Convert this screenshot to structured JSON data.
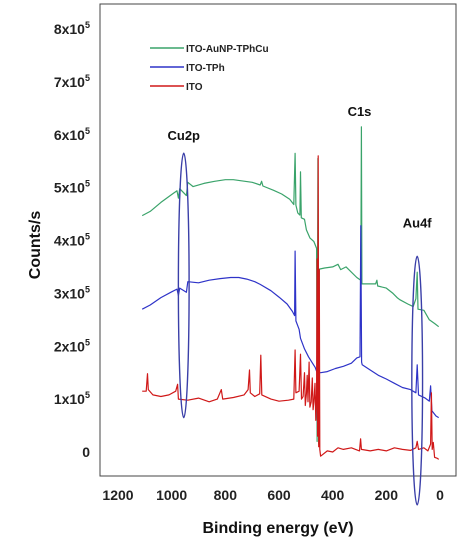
{
  "chart_data": {
    "type": "line",
    "title": "",
    "xlabel": "Binding energy (eV)",
    "ylabel": "Counts/s",
    "xlim": [
      1200,
      0
    ],
    "ylim": [
      -50000,
      850000
    ],
    "x_reversed": true,
    "grid": false,
    "legend_position": "top-left",
    "x_ticks": [
      1200,
      1000,
      800,
      600,
      400,
      200,
      0
    ],
    "y_ticks": [
      {
        "value": 0,
        "base": "0",
        "exp": ""
      },
      {
        "value": 100000,
        "base": "1x10",
        "exp": "5"
      },
      {
        "value": 200000,
        "base": "2x10",
        "exp": "5"
      },
      {
        "value": 300000,
        "base": "3x10",
        "exp": "5"
      },
      {
        "value": 400000,
        "base": "4x10",
        "exp": "5"
      },
      {
        "value": 500000,
        "base": "5x10",
        "exp": "5"
      },
      {
        "value": 600000,
        "base": "6x10",
        "exp": "5"
      },
      {
        "value": 700000,
        "base": "7x10",
        "exp": "5"
      },
      {
        "value": 800000,
        "base": "8x10",
        "exp": "5"
      }
    ],
    "series": [
      {
        "name": "ITO-AuNP-TPhCu",
        "color": "#3aa36a",
        "points": [
          [
            1110,
            447000
          ],
          [
            1080,
            455000
          ],
          [
            1040,
            472000
          ],
          [
            1000,
            487000
          ],
          [
            980,
            494000
          ],
          [
            975,
            480000
          ],
          [
            970,
            498000
          ],
          [
            945,
            485000
          ],
          [
            940,
            510000
          ],
          [
            920,
            502000
          ],
          [
            880,
            508000
          ],
          [
            840,
            512000
          ],
          [
            800,
            515000
          ],
          [
            770,
            515000
          ],
          [
            740,
            513000
          ],
          [
            700,
            510000
          ],
          [
            670,
            505000
          ],
          [
            665,
            512000
          ],
          [
            660,
            503000
          ],
          [
            620,
            495000
          ],
          [
            590,
            488000
          ],
          [
            560,
            478000
          ],
          [
            545,
            468000
          ],
          [
            540,
            565000
          ],
          [
            537,
            467000
          ],
          [
            530,
            452000
          ],
          [
            522,
            448000
          ],
          [
            520,
            530000
          ],
          [
            517,
            443000
          ],
          [
            505,
            440000
          ],
          [
            498,
            420000
          ],
          [
            485,
            405000
          ],
          [
            470,
            398000
          ],
          [
            460,
            385000
          ],
          [
            458,
            20000
          ],
          [
            455,
            555000
          ],
          [
            452,
            15000
          ],
          [
            450,
            346000
          ],
          [
            430,
            348000
          ],
          [
            400,
            350000
          ],
          [
            380,
            355000
          ],
          [
            370,
            345000
          ],
          [
            350,
            350000
          ],
          [
            310,
            330000
          ],
          [
            295,
            325000
          ],
          [
            293,
            615000
          ],
          [
            291,
            318000
          ],
          [
            270,
            318000
          ],
          [
            240,
            318000
          ],
          [
            235,
            325000
          ],
          [
            232,
            314000
          ],
          [
            200,
            310000
          ],
          [
            175,
            300000
          ],
          [
            160,
            292000
          ],
          [
            150,
            288000
          ],
          [
            120,
            280000
          ],
          [
            100,
            275000
          ],
          [
            90,
            290000
          ],
          [
            85,
            340000
          ],
          [
            82,
            270000
          ],
          [
            60,
            268000
          ],
          [
            40,
            250000
          ],
          [
            20,
            243000
          ],
          [
            5,
            237000
          ]
        ]
      },
      {
        "name": "ITO-TPh",
        "color": "#2e33c8",
        "points": [
          [
            1110,
            270000
          ],
          [
            1080,
            278000
          ],
          [
            1040,
            292000
          ],
          [
            1000,
            303000
          ],
          [
            980,
            308000
          ],
          [
            975,
            296000
          ],
          [
            970,
            310000
          ],
          [
            945,
            302000
          ],
          [
            940,
            322000
          ],
          [
            900,
            320000
          ],
          [
            860,
            325000
          ],
          [
            820,
            328000
          ],
          [
            780,
            330000
          ],
          [
            750,
            330000
          ],
          [
            720,
            327000
          ],
          [
            690,
            322000
          ],
          [
            670,
            317000
          ],
          [
            630,
            305000
          ],
          [
            600,
            293000
          ],
          [
            570,
            280000
          ],
          [
            550,
            266000
          ],
          [
            542,
            258000
          ],
          [
            540,
            380000
          ],
          [
            537,
            248000
          ],
          [
            525,
            232000
          ],
          [
            520,
            215000
          ],
          [
            505,
            195000
          ],
          [
            490,
            180000
          ],
          [
            475,
            168000
          ],
          [
            465,
            160000
          ],
          [
            458,
            150000
          ],
          [
            456,
            40000
          ],
          [
            452,
            150000
          ],
          [
            445,
            150000
          ],
          [
            420,
            152000
          ],
          [
            390,
            158000
          ],
          [
            360,
            162000
          ],
          [
            330,
            168000
          ],
          [
            310,
            178000
          ],
          [
            298,
            180000
          ],
          [
            295,
            428000
          ],
          [
            292,
            170000
          ],
          [
            290,
            165000
          ],
          [
            260,
            155000
          ],
          [
            230,
            145000
          ],
          [
            200,
            138000
          ],
          [
            170,
            130000
          ],
          [
            140,
            122000
          ],
          [
            110,
            118000
          ],
          [
            90,
            112000
          ],
          [
            85,
            165000
          ],
          [
            80,
            108000
          ],
          [
            55,
            102000
          ],
          [
            40,
            96000
          ],
          [
            35,
            125000
          ],
          [
            30,
            78000
          ],
          [
            15,
            68000
          ],
          [
            5,
            65000
          ]
        ]
      },
      {
        "name": "ITO",
        "color": "#d01818",
        "points": [
          [
            1110,
            115000
          ],
          [
            1095,
            115000
          ],
          [
            1090,
            148000
          ],
          [
            1087,
            118000
          ],
          [
            1070,
            108000
          ],
          [
            1040,
            105000
          ],
          [
            1010,
            108000
          ],
          [
            985,
            115000
          ],
          [
            978,
            128000
          ],
          [
            975,
            100000
          ],
          [
            940,
            98000
          ],
          [
            900,
            102000
          ],
          [
            860,
            95000
          ],
          [
            830,
            100000
          ],
          [
            815,
            118000
          ],
          [
            810,
            100000
          ],
          [
            770,
            103000
          ],
          [
            730,
            108000
          ],
          [
            715,
            118000
          ],
          [
            710,
            155000
          ],
          [
            707,
            112000
          ],
          [
            690,
            105000
          ],
          [
            672,
            110000
          ],
          [
            668,
            183000
          ],
          [
            664,
            108000
          ],
          [
            630,
            100000
          ],
          [
            600,
            96000
          ],
          [
            565,
            98000
          ],
          [
            545,
            100000
          ],
          [
            540,
            193000
          ],
          [
            537,
            112000
          ],
          [
            525,
            115000
          ],
          [
            520,
            185000
          ],
          [
            516,
            100000
          ],
          [
            510,
            105000
          ],
          [
            505,
            150000
          ],
          [
            502,
            88000
          ],
          [
            498,
            110000
          ],
          [
            495,
            145000
          ],
          [
            492,
            95000
          ],
          [
            488,
            170000
          ],
          [
            485,
            85000
          ],
          [
            480,
            95000
          ],
          [
            476,
            140000
          ],
          [
            473,
            80000
          ],
          [
            470,
            95000
          ],
          [
            466,
            130000
          ],
          [
            463,
            60000
          ],
          [
            460,
            110000
          ],
          [
            458,
            365000
          ],
          [
            456,
            30000
          ],
          [
            454,
            560000
          ],
          [
            452,
            10000
          ],
          [
            450,
            345000
          ],
          [
            448,
            5000
          ],
          [
            445,
            -8000
          ],
          [
            420,
            2000
          ],
          [
            400,
            0
          ],
          [
            380,
            8000
          ],
          [
            360,
            5000
          ],
          [
            330,
            8000
          ],
          [
            300,
            2000
          ],
          [
            296,
            25000
          ],
          [
            293,
            5000
          ],
          [
            260,
            2000
          ],
          [
            230,
            5000
          ],
          [
            200,
            2000
          ],
          [
            170,
            8000
          ],
          [
            140,
            5000
          ],
          [
            110,
            3000
          ],
          [
            90,
            8000
          ],
          [
            85,
            20000
          ],
          [
            80,
            5000
          ],
          [
            60,
            8000
          ],
          [
            45,
            2000
          ],
          [
            35,
            15000
          ],
          [
            32,
            112000
          ],
          [
            29,
            5000
          ],
          [
            25,
            18000
          ],
          [
            20,
            -10000
          ],
          [
            10,
            -12000
          ],
          [
            5,
            -14000
          ]
        ]
      }
    ],
    "annotations": [
      {
        "label": "Cu2p",
        "x": 955,
        "y": 590000
      },
      {
        "label": "C1s",
        "x": 300,
        "y": 635000
      },
      {
        "label": "Au4f",
        "x": 85,
        "y": 425000
      }
    ],
    "ellipses": [
      {
        "cx": 955,
        "cy": 315000,
        "rx": 20,
        "ry": 250000
      },
      {
        "cx": 85,
        "cy": 135000,
        "rx": 20,
        "ry": 235000
      }
    ]
  }
}
